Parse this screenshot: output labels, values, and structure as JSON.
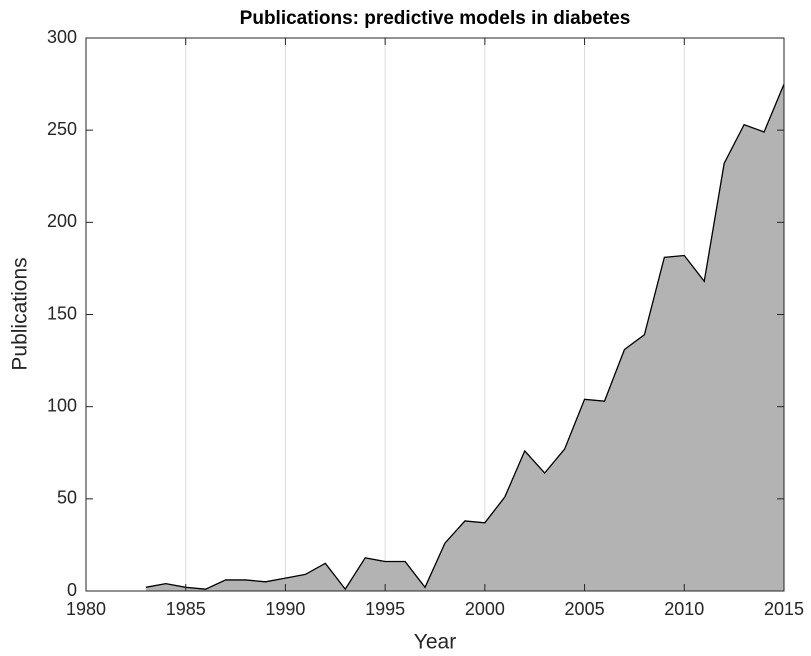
{
  "chart_data": {
    "type": "area",
    "title": "Publications: predictive models in diabetes",
    "xlabel": "Year",
    "ylabel": "Publications",
    "x": [
      1983,
      1984,
      1985,
      1986,
      1987,
      1988,
      1989,
      1990,
      1991,
      1992,
      1993,
      1994,
      1995,
      1996,
      1997,
      1998,
      1999,
      2000,
      2001,
      2002,
      2003,
      2004,
      2005,
      2006,
      2007,
      2008,
      2009,
      2010,
      2011,
      2012,
      2013,
      2014,
      2015
    ],
    "values": [
      2,
      4,
      2,
      1,
      6,
      6,
      5,
      7,
      9,
      15,
      1,
      18,
      16,
      16,
      2,
      26,
      38,
      37,
      51,
      76,
      64,
      77,
      104,
      103,
      131,
      139,
      181,
      182,
      168,
      232,
      253,
      249,
      275
    ],
    "color": "#b3b3b3",
    "edge_color": "#000000",
    "xlim": [
      1980,
      2015
    ],
    "xticks": [
      1980,
      1985,
      1990,
      1995,
      2000,
      2005,
      2010,
      2015
    ],
    "ylim": [
      0,
      300
    ],
    "yticks": [
      0,
      50,
      100,
      150,
      200,
      250,
      300
    ],
    "grid": "x"
  }
}
